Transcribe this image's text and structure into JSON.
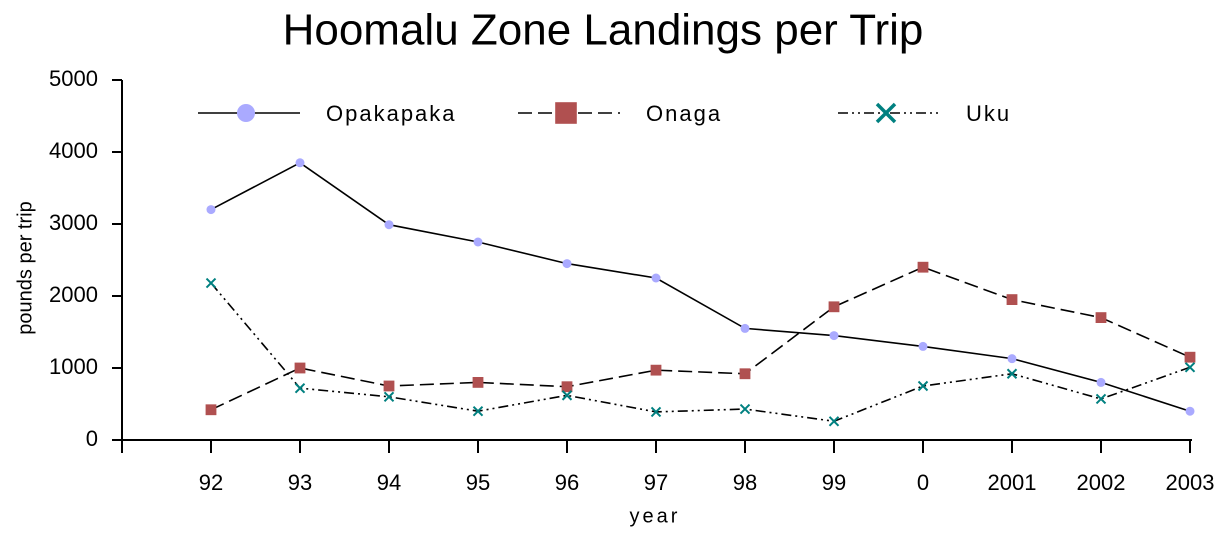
{
  "chart_data": {
    "type": "line",
    "title": "Hoomalu Zone Landings per Trip",
    "x_label": "year",
    "y_label": "pounds per trip",
    "categories": [
      "92",
      "93",
      "94",
      "95",
      "96",
      "97",
      "98",
      "99",
      "0",
      "2001",
      "2002",
      "2003"
    ],
    "series": [
      {
        "name": "Opakapaka",
        "color": "#aaaaff",
        "marker": "circle",
        "dash": "none",
        "values": [
          3200,
          3850,
          2990,
          2750,
          2450,
          2250,
          1550,
          1450,
          1300,
          1130,
          800,
          400
        ]
      },
      {
        "name": "Onaga",
        "color": "#b05050",
        "marker": "square",
        "dash": "14 6",
        "values": [
          420,
          1000,
          750,
          800,
          740,
          970,
          920,
          1850,
          2400,
          1950,
          1700,
          1150
        ]
      },
      {
        "name": "Uku",
        "color": "#008080",
        "marker": "x",
        "dash": "10 4 2 4 2 4",
        "values": [
          2180,
          720,
          600,
          400,
          620,
          390,
          430,
          260,
          750,
          920,
          570,
          1010
        ]
      }
    ],
    "ylim": [
      0,
      5000
    ],
    "yticks": [
      0,
      1000,
      2000,
      3000,
      4000,
      5000
    ],
    "grid": false,
    "legend": "top"
  }
}
